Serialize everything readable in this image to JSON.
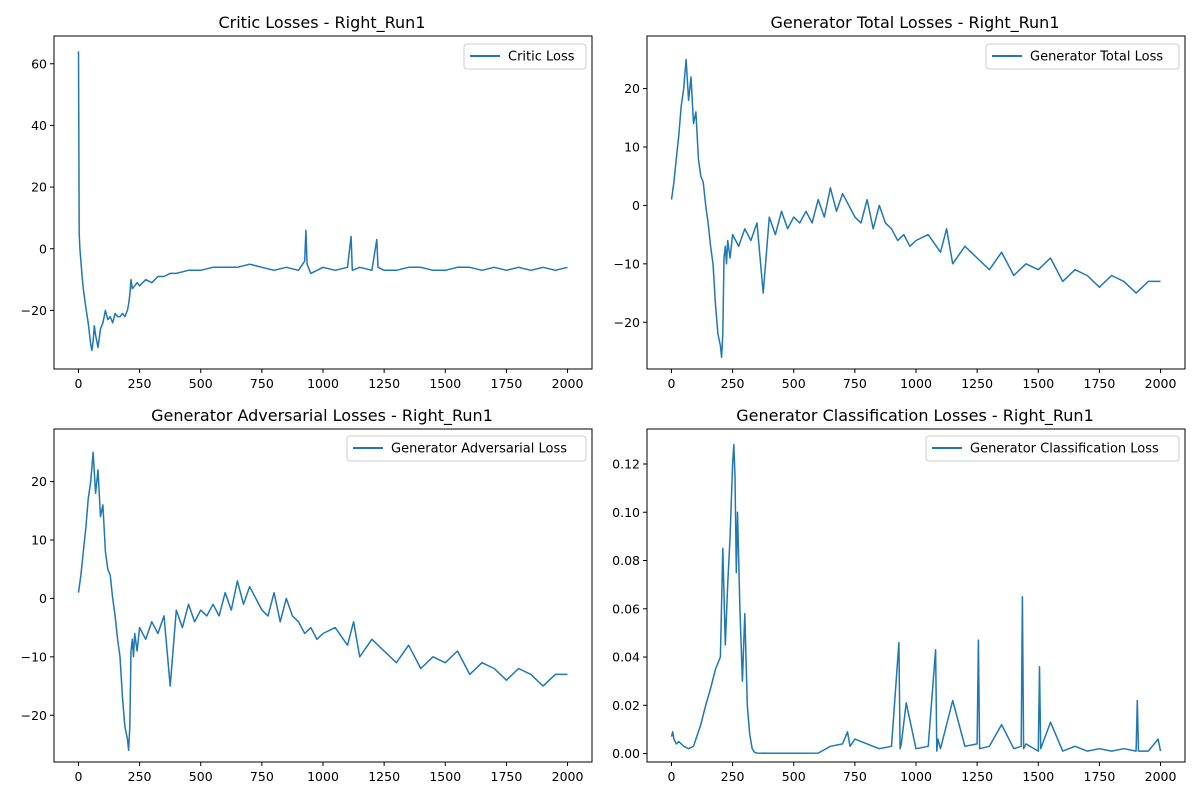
{
  "chart_data": [
    {
      "type": "line",
      "title": "Critic Losses - Right_Run1",
      "xlabel": "",
      "ylabel": "",
      "xlim": [
        -100,
        2100
      ],
      "ylim": [
        -39,
        69
      ],
      "xticks": [
        0,
        250,
        500,
        750,
        1000,
        1250,
        1500,
        1750,
        2000
      ],
      "yticks": [
        -20,
        0,
        20,
        40,
        60
      ],
      "ytick_labels": [
        "−20",
        "0",
        "20",
        "40",
        "60"
      ],
      "legend": "top-right",
      "grid": false,
      "color": "#1f77b4",
      "series": [
        {
          "name": "Critic Loss",
          "x": [
            0,
            3,
            6,
            10,
            15,
            20,
            30,
            40,
            50,
            55,
            60,
            65,
            70,
            80,
            90,
            100,
            110,
            120,
            130,
            140,
            150,
            160,
            170,
            180,
            190,
            200,
            205,
            210,
            215,
            220,
            230,
            240,
            250,
            275,
            300,
            325,
            350,
            375,
            400,
            450,
            500,
            550,
            600,
            650,
            700,
            750,
            800,
            850,
            900,
            925,
            930,
            935,
            950,
            1000,
            1050,
            1100,
            1115,
            1120,
            1150,
            1200,
            1220,
            1225,
            1250,
            1300,
            1350,
            1400,
            1450,
            1500,
            1550,
            1600,
            1650,
            1700,
            1750,
            1800,
            1850,
            1900,
            1950,
            2000
          ],
          "y": [
            64,
            5,
            0,
            -4,
            -9,
            -13,
            -19,
            -24,
            -31,
            -33,
            -30,
            -25,
            -28,
            -32,
            -26,
            -24,
            -20,
            -23,
            -22,
            -24,
            -21,
            -22,
            -22,
            -21,
            -22,
            -20,
            -18,
            -15,
            -10,
            -13,
            -12,
            -11,
            -12,
            -10,
            -11,
            -9,
            -9,
            -8,
            -8,
            -7,
            -7,
            -6,
            -6,
            -6,
            -5,
            -6,
            -7,
            -6,
            -7,
            -4,
            6,
            -5,
            -8,
            -6,
            -7,
            -6,
            4,
            -7,
            -6,
            -7,
            3,
            -6,
            -7,
            -7,
            -6,
            -6,
            -7,
            -7,
            -6,
            -6,
            -7,
            -6,
            -7,
            -6,
            -7,
            -6,
            -7,
            -6
          ]
        }
      ]
    },
    {
      "type": "line",
      "title": "Generator Total Losses - Right_Run1",
      "xlabel": "",
      "ylabel": "",
      "xlim": [
        -100,
        2100
      ],
      "ylim": [
        -28,
        29
      ],
      "xticks": [
        0,
        250,
        500,
        750,
        1000,
        1250,
        1500,
        1750,
        2000
      ],
      "yticks": [
        -20,
        -10,
        0,
        10,
        20
      ],
      "ytick_labels": [
        "−20",
        "−10",
        "0",
        "10",
        "20"
      ],
      "legend": "top-right",
      "grid": false,
      "color": "#1f77b4",
      "series": [
        {
          "name": "Generator Total Loss",
          "x": [
            0,
            10,
            20,
            30,
            40,
            50,
            60,
            70,
            80,
            90,
            100,
            110,
            120,
            130,
            140,
            150,
            160,
            170,
            180,
            190,
            200,
            205,
            210,
            215,
            220,
            225,
            230,
            240,
            250,
            275,
            300,
            325,
            350,
            375,
            400,
            425,
            450,
            475,
            500,
            525,
            550,
            575,
            600,
            625,
            650,
            675,
            700,
            725,
            750,
            775,
            800,
            825,
            850,
            875,
            900,
            925,
            950,
            975,
            1000,
            1050,
            1100,
            1125,
            1150,
            1200,
            1250,
            1300,
            1350,
            1400,
            1450,
            1500,
            1550,
            1600,
            1650,
            1700,
            1750,
            1800,
            1850,
            1900,
            1950,
            2000
          ],
          "y": [
            1,
            4,
            8,
            12,
            17,
            20,
            25,
            18,
            22,
            14,
            16,
            8,
            5,
            4,
            0,
            -3,
            -7,
            -10,
            -17,
            -22,
            -24,
            -26,
            -22,
            -9,
            -7,
            -10,
            -6,
            -9,
            -5,
            -7,
            -4,
            -6,
            -3,
            -15,
            -2,
            -5,
            -1,
            -4,
            -2,
            -3,
            -1,
            -3,
            1,
            -2,
            3,
            -1,
            2,
            0,
            -2,
            -3,
            1,
            -4,
            0,
            -3,
            -4,
            -6,
            -5,
            -7,
            -6,
            -5,
            -8,
            -4,
            -10,
            -7,
            -9,
            -11,
            -8,
            -12,
            -10,
            -11,
            -9,
            -13,
            -11,
            -12,
            -14,
            -12,
            -13,
            -15,
            -13,
            -13
          ]
        }
      ]
    },
    {
      "type": "line",
      "title": "Generator Adversarial Losses - Right_Run1",
      "xlabel": "",
      "ylabel": "",
      "xlim": [
        -100,
        2100
      ],
      "ylim": [
        -28,
        29
      ],
      "xticks": [
        0,
        250,
        500,
        750,
        1000,
        1250,
        1500,
        1750,
        2000
      ],
      "yticks": [
        -20,
        -10,
        0,
        10,
        20
      ],
      "ytick_labels": [
        "−20",
        "−10",
        "0",
        "10",
        "20"
      ],
      "legend": "top-right",
      "grid": false,
      "color": "#1f77b4",
      "series": [
        {
          "name": "Generator Adversarial Loss",
          "x": [
            0,
            10,
            20,
            30,
            40,
            50,
            60,
            70,
            80,
            90,
            100,
            110,
            120,
            130,
            140,
            150,
            160,
            170,
            180,
            190,
            200,
            205,
            210,
            215,
            220,
            225,
            230,
            240,
            250,
            275,
            300,
            325,
            350,
            375,
            400,
            425,
            450,
            475,
            500,
            525,
            550,
            575,
            600,
            625,
            650,
            675,
            700,
            725,
            750,
            775,
            800,
            825,
            850,
            875,
            900,
            925,
            950,
            975,
            1000,
            1050,
            1100,
            1125,
            1150,
            1200,
            1250,
            1300,
            1350,
            1400,
            1450,
            1500,
            1550,
            1600,
            1650,
            1700,
            1750,
            1800,
            1850,
            1900,
            1950,
            2000
          ],
          "y": [
            1,
            4,
            8,
            12,
            17,
            20,
            25,
            18,
            22,
            14,
            16,
            8,
            5,
            4,
            0,
            -3,
            -7,
            -10,
            -17,
            -22,
            -24,
            -26,
            -22,
            -9,
            -7,
            -10,
            -6,
            -9,
            -5,
            -7,
            -4,
            -6,
            -3,
            -15,
            -2,
            -5,
            -1,
            -4,
            -2,
            -3,
            -1,
            -3,
            1,
            -2,
            3,
            -1,
            2,
            0,
            -2,
            -3,
            1,
            -4,
            0,
            -3,
            -4,
            -6,
            -5,
            -7,
            -6,
            -5,
            -8,
            -4,
            -10,
            -7,
            -9,
            -11,
            -8,
            -12,
            -10,
            -11,
            -9,
            -13,
            -11,
            -12,
            -14,
            -12,
            -13,
            -15,
            -13,
            -13
          ]
        }
      ]
    },
    {
      "type": "line",
      "title": "Generator Classification Losses - Right_Run1",
      "xlabel": "",
      "ylabel": "",
      "xlim": [
        -100,
        2100
      ],
      "ylim": [
        -0.0035,
        0.1345
      ],
      "xticks": [
        0,
        250,
        500,
        750,
        1000,
        1250,
        1500,
        1750,
        2000
      ],
      "yticks": [
        0,
        0.02,
        0.04,
        0.06,
        0.08,
        0.1,
        0.12
      ],
      "ytick_labels": [
        "0.00",
        "0.02",
        "0.04",
        "0.06",
        "0.08",
        "0.10",
        "0.12"
      ],
      "legend": "top-right",
      "grid": false,
      "color": "#1f77b4",
      "series": [
        {
          "name": "Generator Classification Loss",
          "x": [
            0,
            5,
            10,
            20,
            30,
            50,
            70,
            90,
            100,
            120,
            140,
            160,
            180,
            200,
            210,
            220,
            230,
            240,
            250,
            255,
            260,
            265,
            270,
            280,
            290,
            300,
            310,
            320,
            330,
            340,
            350,
            400,
            500,
            600,
            650,
            700,
            720,
            730,
            750,
            800,
            850,
            900,
            930,
            935,
            940,
            960,
            1000,
            1050,
            1080,
            1085,
            1090,
            1100,
            1150,
            1200,
            1250,
            1255,
            1260,
            1300,
            1350,
            1400,
            1430,
            1435,
            1440,
            1450,
            1500,
            1505,
            1510,
            1550,
            1600,
            1650,
            1700,
            1750,
            1800,
            1850,
            1900,
            1905,
            1910,
            1950,
            1990,
            2000
          ],
          "y": [
            0.007,
            0.009,
            0.006,
            0.004,
            0.005,
            0.003,
            0.002,
            0.003,
            0.006,
            0.012,
            0.02,
            0.027,
            0.035,
            0.04,
            0.085,
            0.045,
            0.07,
            0.09,
            0.12,
            0.128,
            0.115,
            0.075,
            0.1,
            0.06,
            0.03,
            0.058,
            0.02,
            0.008,
            0.002,
            0.0005,
            0.0002,
            0.0001,
            0.0001,
            0.0002,
            0.003,
            0.004,
            0.009,
            0.003,
            0.006,
            0.004,
            0.002,
            0.003,
            0.046,
            0.002,
            0.004,
            0.021,
            0.002,
            0.003,
            0.043,
            0.001,
            0.006,
            0.002,
            0.022,
            0.003,
            0.004,
            0.047,
            0.002,
            0.003,
            0.012,
            0.002,
            0.003,
            0.065,
            0.002,
            0.004,
            0.001,
            0.036,
            0.002,
            0.013,
            0.001,
            0.003,
            0.001,
            0.002,
            0.001,
            0.002,
            0.001,
            0.022,
            0.001,
            0.001,
            0.006,
            0.001
          ]
        }
      ]
    }
  ]
}
